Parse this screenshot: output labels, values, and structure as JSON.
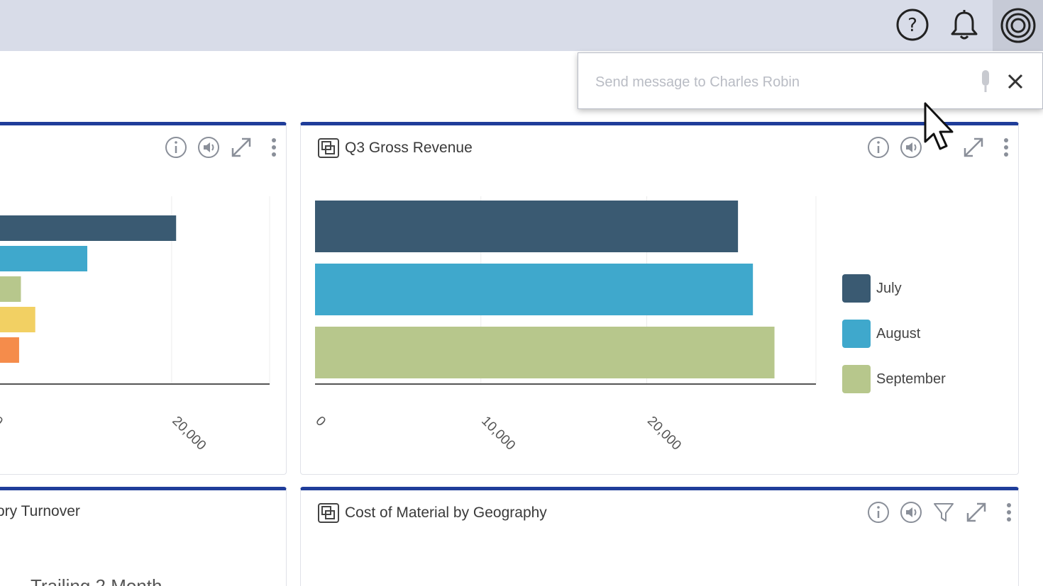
{
  "top_bar": {
    "icons": [
      "help-icon",
      "bell-icon",
      "avatar-icon"
    ]
  },
  "message_popover": {
    "placeholder": "Send message to Charles Robin",
    "value": ""
  },
  "card_left_top": {
    "chart_data": {
      "type": "bar",
      "orientation": "horizontal",
      "values": [
        20500,
        10600,
        3200,
        4800,
        3000
      ],
      "colors": [
        "#3a5a72",
        "#3fa8cc",
        "#b7c78c",
        "#f2d063",
        "#f58c4b"
      ],
      "x_ticks_visible": [
        "0",
        "20,000"
      ],
      "xlim": [
        0,
        31000
      ],
      "grid": true
    }
  },
  "card_main": {
    "title": "Q3 Gross Revenue",
    "chart_data": {
      "type": "bar",
      "orientation": "horizontal",
      "series": [
        {
          "name": "July",
          "value": 25500,
          "color": "#3a5a72"
        },
        {
          "name": "August",
          "value": 26400,
          "color": "#3fa8cc"
        },
        {
          "name": "September",
          "value": 27700,
          "color": "#b7c78c"
        }
      ],
      "x_ticks": [
        "0",
        "10,000",
        "20,000"
      ],
      "xlim": [
        0,
        30200
      ],
      "grid": true,
      "legend": "right"
    }
  },
  "card_left_bottom": {
    "title": "ory Turnover",
    "subtitle": "Trailing 2 Month"
  },
  "card_bottom": {
    "title": "Cost of Material by Geography"
  }
}
